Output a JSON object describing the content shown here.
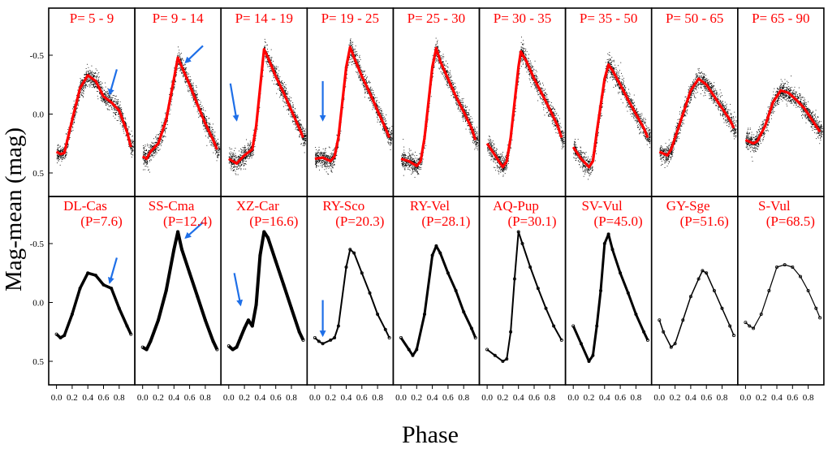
{
  "chart_data": {
    "type": "scatter",
    "xlabel": "Phase",
    "ylabel": "Mag-mean (mag)",
    "xlim": [
      -0.1,
      1.0
    ],
    "ylim": [
      -0.9,
      0.7
    ],
    "x_ticks": [
      "0.0",
      "0.2",
      "0.4",
      "0.6",
      "0.8"
    ],
    "x_tick_values": [
      0.0,
      0.2,
      0.4,
      0.6,
      0.8
    ],
    "y_ticks": [
      "-0.5",
      "0.0",
      "0.5"
    ],
    "y_tick_values": [
      -0.5,
      0.0,
      0.5
    ],
    "colors": {
      "label": "#ff0000",
      "mean_curve": "#ff0000",
      "arrow": "#1e6fe8",
      "points": "#000000"
    },
    "top_row": [
      {
        "label": "P=  5 -  9",
        "curve": [
          [
            0.0,
            0.32
          ],
          [
            0.05,
            0.34
          ],
          [
            0.1,
            0.33
          ],
          [
            0.2,
            0.05
          ],
          [
            0.3,
            -0.22
          ],
          [
            0.4,
            -0.33
          ],
          [
            0.5,
            -0.28
          ],
          [
            0.6,
            -0.15
          ],
          [
            0.7,
            -0.1
          ],
          [
            0.8,
            -0.03
          ],
          [
            0.9,
            0.15
          ],
          [
            0.95,
            0.28
          ]
        ],
        "arrow": [
          0.77,
          -0.38,
          0.68,
          -0.17
        ]
      },
      {
        "label": "P=  9 - 14",
        "curve": [
          [
            0.0,
            0.36
          ],
          [
            0.05,
            0.38
          ],
          [
            0.1,
            0.32
          ],
          [
            0.2,
            0.25
          ],
          [
            0.3,
            0.05
          ],
          [
            0.4,
            -0.3
          ],
          [
            0.45,
            -0.48
          ],
          [
            0.5,
            -0.4
          ],
          [
            0.6,
            -0.25
          ],
          [
            0.7,
            -0.08
          ],
          [
            0.8,
            0.08
          ],
          [
            0.9,
            0.22
          ],
          [
            0.95,
            0.3
          ]
        ],
        "arrow": [
          0.77,
          -0.58,
          0.55,
          -0.44
        ]
      },
      {
        "label": "P= 14 - 19",
        "curve": [
          [
            0.0,
            0.38
          ],
          [
            0.1,
            0.42
          ],
          [
            0.2,
            0.35
          ],
          [
            0.3,
            0.3
          ],
          [
            0.35,
            0.1
          ],
          [
            0.45,
            -0.55
          ],
          [
            0.5,
            -0.48
          ],
          [
            0.6,
            -0.32
          ],
          [
            0.7,
            -0.18
          ],
          [
            0.8,
            -0.03
          ],
          [
            0.9,
            0.12
          ],
          [
            0.95,
            0.2
          ]
        ],
        "arrow": [
          0.02,
          -0.26,
          0.1,
          0.05
        ]
      },
      {
        "label": "P= 19 - 25",
        "curve": [
          [
            0.0,
            0.38
          ],
          [
            0.1,
            0.37
          ],
          [
            0.2,
            0.4
          ],
          [
            0.25,
            0.36
          ],
          [
            0.3,
            0.2
          ],
          [
            0.4,
            -0.4
          ],
          [
            0.45,
            -0.57
          ],
          [
            0.5,
            -0.48
          ],
          [
            0.6,
            -0.32
          ],
          [
            0.7,
            -0.18
          ],
          [
            0.8,
            -0.03
          ],
          [
            0.9,
            0.12
          ],
          [
            0.95,
            0.2
          ]
        ],
        "arrow": [
          0.1,
          -0.28,
          0.1,
          0.05
        ]
      },
      {
        "label": "P= 25 - 30",
        "curve": [
          [
            0.0,
            0.38
          ],
          [
            0.1,
            0.4
          ],
          [
            0.2,
            0.44
          ],
          [
            0.25,
            0.4
          ],
          [
            0.3,
            0.2
          ],
          [
            0.4,
            -0.4
          ],
          [
            0.45,
            -0.56
          ],
          [
            0.5,
            -0.45
          ],
          [
            0.6,
            -0.3
          ],
          [
            0.7,
            -0.15
          ],
          [
            0.8,
            -0.02
          ],
          [
            0.9,
            0.12
          ],
          [
            0.95,
            0.22
          ]
        ]
      },
      {
        "label": "P= 30 - 35",
        "curve": [
          [
            0.0,
            0.25
          ],
          [
            0.1,
            0.35
          ],
          [
            0.2,
            0.45
          ],
          [
            0.25,
            0.4
          ],
          [
            0.3,
            0.2
          ],
          [
            0.4,
            -0.4
          ],
          [
            0.43,
            -0.53
          ],
          [
            0.5,
            -0.45
          ],
          [
            0.6,
            -0.3
          ],
          [
            0.7,
            -0.17
          ],
          [
            0.8,
            -0.04
          ],
          [
            0.9,
            0.1
          ],
          [
            0.95,
            0.2
          ]
        ]
      },
      {
        "label": "P= 35 - 50",
        "curve": [
          [
            0.0,
            0.28
          ],
          [
            0.1,
            0.38
          ],
          [
            0.2,
            0.45
          ],
          [
            0.25,
            0.4
          ],
          [
            0.3,
            0.15
          ],
          [
            0.4,
            -0.3
          ],
          [
            0.45,
            -0.42
          ],
          [
            0.5,
            -0.37
          ],
          [
            0.6,
            -0.25
          ],
          [
            0.7,
            -0.12
          ],
          [
            0.8,
            0.0
          ],
          [
            0.9,
            0.12
          ],
          [
            0.95,
            0.2
          ]
        ]
      },
      {
        "label": "P= 50 - 65",
        "curve": [
          [
            0.0,
            0.32
          ],
          [
            0.1,
            0.35
          ],
          [
            0.15,
            0.3
          ],
          [
            0.25,
            0.1
          ],
          [
            0.4,
            -0.2
          ],
          [
            0.5,
            -0.3
          ],
          [
            0.6,
            -0.25
          ],
          [
            0.7,
            -0.15
          ],
          [
            0.8,
            -0.05
          ],
          [
            0.9,
            0.05
          ],
          [
            0.95,
            0.12
          ]
        ]
      },
      {
        "label": "P= 65 - 90",
        "curve": [
          [
            0.0,
            0.22
          ],
          [
            0.1,
            0.25
          ],
          [
            0.15,
            0.23
          ],
          [
            0.25,
            0.1
          ],
          [
            0.35,
            -0.1
          ],
          [
            0.45,
            -0.2
          ],
          [
            0.55,
            -0.18
          ],
          [
            0.65,
            -0.12
          ],
          [
            0.75,
            -0.05
          ],
          [
            0.85,
            0.05
          ],
          [
            0.95,
            0.15
          ]
        ]
      }
    ],
    "bottom_row": [
      {
        "name": "DL-Cas",
        "period": "(P=7.6)",
        "curve": [
          [
            0.0,
            0.27
          ],
          [
            0.05,
            0.3
          ],
          [
            0.1,
            0.28
          ],
          [
            0.2,
            0.1
          ],
          [
            0.3,
            -0.12
          ],
          [
            0.4,
            -0.25
          ],
          [
            0.5,
            -0.23
          ],
          [
            0.6,
            -0.15
          ],
          [
            0.7,
            -0.12
          ],
          [
            0.8,
            0.05
          ],
          [
            0.9,
            0.2
          ],
          [
            0.95,
            0.27
          ]
        ],
        "width": 3.5,
        "arrow": [
          0.77,
          -0.38,
          0.68,
          -0.17
        ]
      },
      {
        "name": "SS-Cma",
        "period": "(P=12.4)",
        "curve": [
          [
            0.0,
            0.38
          ],
          [
            0.05,
            0.4
          ],
          [
            0.1,
            0.33
          ],
          [
            0.2,
            0.15
          ],
          [
            0.3,
            -0.1
          ],
          [
            0.4,
            -0.45
          ],
          [
            0.45,
            -0.6
          ],
          [
            0.5,
            -0.45
          ],
          [
            0.6,
            -0.25
          ],
          [
            0.7,
            -0.05
          ],
          [
            0.8,
            0.15
          ],
          [
            0.9,
            0.33
          ],
          [
            0.95,
            0.4
          ]
        ],
        "width": 4,
        "arrow": [
          0.77,
          -0.68,
          0.55,
          -0.55
        ]
      },
      {
        "name": "XZ-Car",
        "period": "(P=16.6)",
        "curve": [
          [
            0.0,
            0.37
          ],
          [
            0.05,
            0.4
          ],
          [
            0.1,
            0.38
          ],
          [
            0.15,
            0.3
          ],
          [
            0.2,
            0.22
          ],
          [
            0.25,
            0.15
          ],
          [
            0.3,
            0.2
          ],
          [
            0.35,
            0.02
          ],
          [
            0.4,
            -0.4
          ],
          [
            0.45,
            -0.6
          ],
          [
            0.5,
            -0.55
          ],
          [
            0.6,
            -0.35
          ],
          [
            0.7,
            -0.15
          ],
          [
            0.8,
            0.05
          ],
          [
            0.9,
            0.25
          ],
          [
            0.95,
            0.32
          ]
        ],
        "width": 4,
        "arrow": [
          0.07,
          -0.25,
          0.15,
          0.02
        ]
      },
      {
        "name": "RY-Sco",
        "period": "(P=20.3)",
        "curve": [
          [
            0.0,
            0.3
          ],
          [
            0.05,
            0.33
          ],
          [
            0.1,
            0.35
          ],
          [
            0.2,
            0.32
          ],
          [
            0.25,
            0.3
          ],
          [
            0.3,
            0.2
          ],
          [
            0.4,
            -0.3
          ],
          [
            0.45,
            -0.45
          ],
          [
            0.5,
            -0.42
          ],
          [
            0.6,
            -0.25
          ],
          [
            0.7,
            -0.08
          ],
          [
            0.8,
            0.1
          ],
          [
            0.9,
            0.23
          ],
          [
            0.95,
            0.3
          ]
        ],
        "width": 2,
        "arrow": [
          0.1,
          -0.02,
          0.1,
          0.28
        ]
      },
      {
        "name": "RY-Vel",
        "period": "(P=28.1)",
        "curve": [
          [
            0.0,
            0.3
          ],
          [
            0.1,
            0.4
          ],
          [
            0.15,
            0.45
          ],
          [
            0.2,
            0.4
          ],
          [
            0.3,
            0.1
          ],
          [
            0.4,
            -0.4
          ],
          [
            0.45,
            -0.48
          ],
          [
            0.5,
            -0.42
          ],
          [
            0.6,
            -0.25
          ],
          [
            0.7,
            -0.1
          ],
          [
            0.8,
            0.08
          ],
          [
            0.9,
            0.22
          ],
          [
            0.95,
            0.3
          ]
        ],
        "width": 3
      },
      {
        "name": "AQ-Pup",
        "period": "(P=30.1)",
        "curve": [
          [
            0.0,
            0.4
          ],
          [
            0.1,
            0.45
          ],
          [
            0.2,
            0.5
          ],
          [
            0.25,
            0.48
          ],
          [
            0.3,
            0.25
          ],
          [
            0.35,
            -0.2
          ],
          [
            0.4,
            -0.6
          ],
          [
            0.45,
            -0.5
          ],
          [
            0.55,
            -0.3
          ],
          [
            0.65,
            -0.12
          ],
          [
            0.75,
            0.05
          ],
          [
            0.85,
            0.2
          ],
          [
            0.95,
            0.32
          ]
        ],
        "width": 2
      },
      {
        "name": "SV-Vul",
        "period": "(P=45.0)",
        "curve": [
          [
            0.0,
            0.2
          ],
          [
            0.1,
            0.35
          ],
          [
            0.2,
            0.5
          ],
          [
            0.25,
            0.45
          ],
          [
            0.3,
            0.2
          ],
          [
            0.35,
            -0.1
          ],
          [
            0.4,
            -0.5
          ],
          [
            0.45,
            -0.58
          ],
          [
            0.5,
            -0.45
          ],
          [
            0.6,
            -0.25
          ],
          [
            0.7,
            -0.08
          ],
          [
            0.8,
            0.1
          ],
          [
            0.9,
            0.25
          ],
          [
            0.95,
            0.32
          ]
        ],
        "width": 3
      },
      {
        "name": "GY-Sge",
        "period": "(P=51.6)",
        "curve": [
          [
            0.0,
            0.15
          ],
          [
            0.05,
            0.25
          ],
          [
            0.15,
            0.38
          ],
          [
            0.2,
            0.35
          ],
          [
            0.3,
            0.15
          ],
          [
            0.4,
            -0.05
          ],
          [
            0.5,
            -0.2
          ],
          [
            0.55,
            -0.27
          ],
          [
            0.6,
            -0.25
          ],
          [
            0.7,
            -0.1
          ],
          [
            0.8,
            0.05
          ],
          [
            0.9,
            0.2
          ],
          [
            0.95,
            0.28
          ]
        ],
        "width": 1.5
      },
      {
        "name": "S-Vul",
        "period": "(P=68.5)",
        "curve": [
          [
            0.0,
            0.17
          ],
          [
            0.05,
            0.2
          ],
          [
            0.1,
            0.22
          ],
          [
            0.2,
            0.1
          ],
          [
            0.3,
            -0.1
          ],
          [
            0.4,
            -0.3
          ],
          [
            0.5,
            -0.32
          ],
          [
            0.6,
            -0.3
          ],
          [
            0.7,
            -0.22
          ],
          [
            0.8,
            -0.1
          ],
          [
            0.9,
            0.05
          ],
          [
            0.95,
            0.13
          ]
        ],
        "width": 1.2
      }
    ]
  }
}
